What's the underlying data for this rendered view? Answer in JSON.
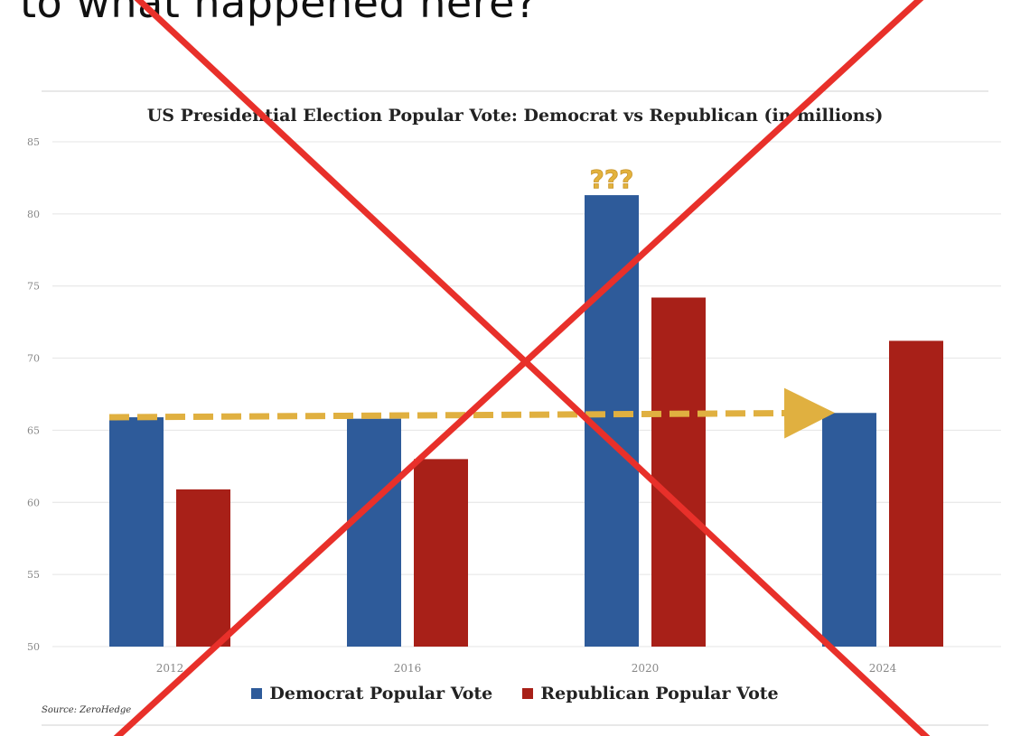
{
  "post": {
    "headline": "to what happened here?"
  },
  "chart_data": {
    "type": "bar",
    "title": "US Presidential Election Popular Vote: Democrat vs Republican (in millions)",
    "xlabel": "",
    "ylabel": "",
    "categories": [
      "2012",
      "2016",
      "2020",
      "2024"
    ],
    "series": [
      {
        "name": "Democrat Popular Vote",
        "values": [
          65.9,
          65.8,
          81.3,
          66.2
        ],
        "color": "#2e5b9a"
      },
      {
        "name": "Republican Popular Vote",
        "values": [
          60.9,
          63.0,
          74.2,
          71.2
        ],
        "color": "#a82018"
      }
    ],
    "ylim": [
      50,
      85
    ],
    "yticks": [
      50,
      55,
      60,
      65,
      70,
      75,
      80,
      85
    ],
    "grid": true,
    "legend": "bottom",
    "annotations": [
      {
        "text": "???",
        "category": "2020",
        "color": "#e3b23c"
      },
      {
        "type": "trend-arrow",
        "from_category": "2012",
        "to_category": "2024",
        "value": 65.9,
        "to_value": 66.2,
        "color": "#e0b040",
        "style": "dashed"
      }
    ],
    "source": "Source: ZeroHedge"
  },
  "overlay": {
    "type": "red-x",
    "color": "#e8302a"
  }
}
